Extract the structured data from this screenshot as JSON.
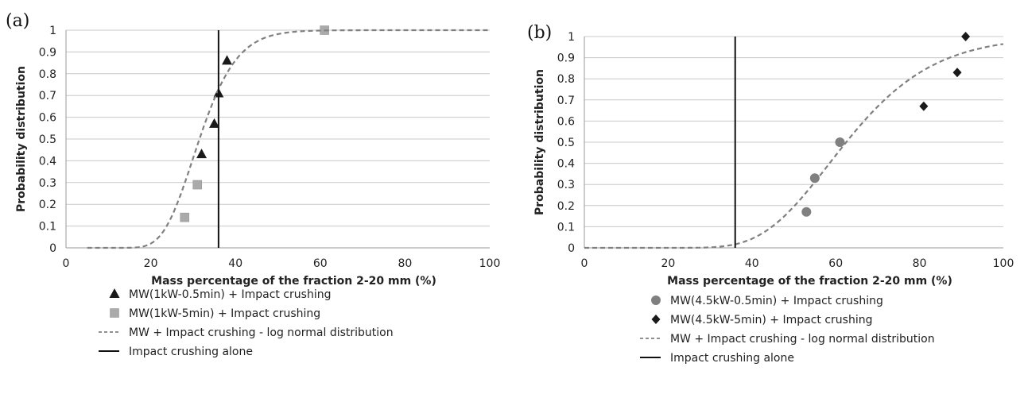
{
  "chart_data": [
    {
      "type": "scatter",
      "panel_label": "(a)",
      "xlabel": "Mass percentage of the fraction 2-20 mm (%)",
      "ylabel": "Probability distribution",
      "xlim": [
        0,
        100
      ],
      "ylim": [
        0,
        1
      ],
      "xticks": [
        "0",
        "20",
        "40",
        "60",
        "80",
        "100"
      ],
      "yticks": [
        "0",
        "0.1",
        "0.2",
        "0.3",
        "0.4",
        "0.5",
        "0.6",
        "0.7",
        "0.8",
        "0.9",
        "1"
      ],
      "grid": "horizontal",
      "legend_position": "bottom",
      "series": [
        {
          "name": "MW(1kW-0.5min) + Impact crushing",
          "marker": "triangle",
          "color": "#1a1a1a",
          "x": [
            32,
            35,
            36,
            38
          ],
          "y": [
            0.43,
            0.57,
            0.71,
            0.86
          ]
        },
        {
          "name": "MW(1kW-5min) + Impact crushing",
          "marker": "square",
          "color": "#aaaaaa",
          "x": [
            28,
            31,
            61
          ],
          "y": [
            0.14,
            0.29,
            1.0
          ]
        },
        {
          "name": "MW + Impact crushing - log normal distribution",
          "style": "dashed",
          "color": "#808080",
          "mu": 31.5,
          "sigma": 0.22,
          "x_start": 5
        },
        {
          "name": "Impact crushing alone",
          "style": "vertical-line",
          "color": "#111111",
          "x": 36
        }
      ]
    },
    {
      "type": "scatter",
      "panel_label": "(b)",
      "xlabel": "Mass percentage of the fraction 2-20 mm (%)",
      "ylabel": "Probability distribution",
      "xlim": [
        0,
        100
      ],
      "ylim": [
        0,
        1
      ],
      "xticks": [
        "0",
        "20",
        "40",
        "60",
        "80",
        "100"
      ],
      "yticks": [
        "0",
        "0.1",
        "0.2",
        "0.3",
        "0.4",
        "0.5",
        "0.6",
        "0.7",
        "0.8",
        "0.9",
        "1"
      ],
      "grid": "horizontal",
      "legend_position": "bottom",
      "series": [
        {
          "name": "MW(4.5kW-0.5min) + Impact crushing",
          "marker": "circle",
          "color": "#808080",
          "x": [
            53,
            55,
            61
          ],
          "y": [
            0.17,
            0.33,
            0.5
          ]
        },
        {
          "name": "MW(4.5kW-5min) + Impact crushing",
          "marker": "diamond",
          "color": "#1a1a1a",
          "x": [
            81,
            89,
            91
          ],
          "y": [
            0.67,
            0.83,
            1.0
          ]
        },
        {
          "name": "MW + Impact crushing - log normal distribution",
          "style": "dashed",
          "color": "#808080",
          "mu": 62.5,
          "sigma": 0.26,
          "x_start": 0
        },
        {
          "name": "Impact crushing alone",
          "style": "vertical-line",
          "color": "#111111",
          "x": 36
        }
      ]
    }
  ]
}
